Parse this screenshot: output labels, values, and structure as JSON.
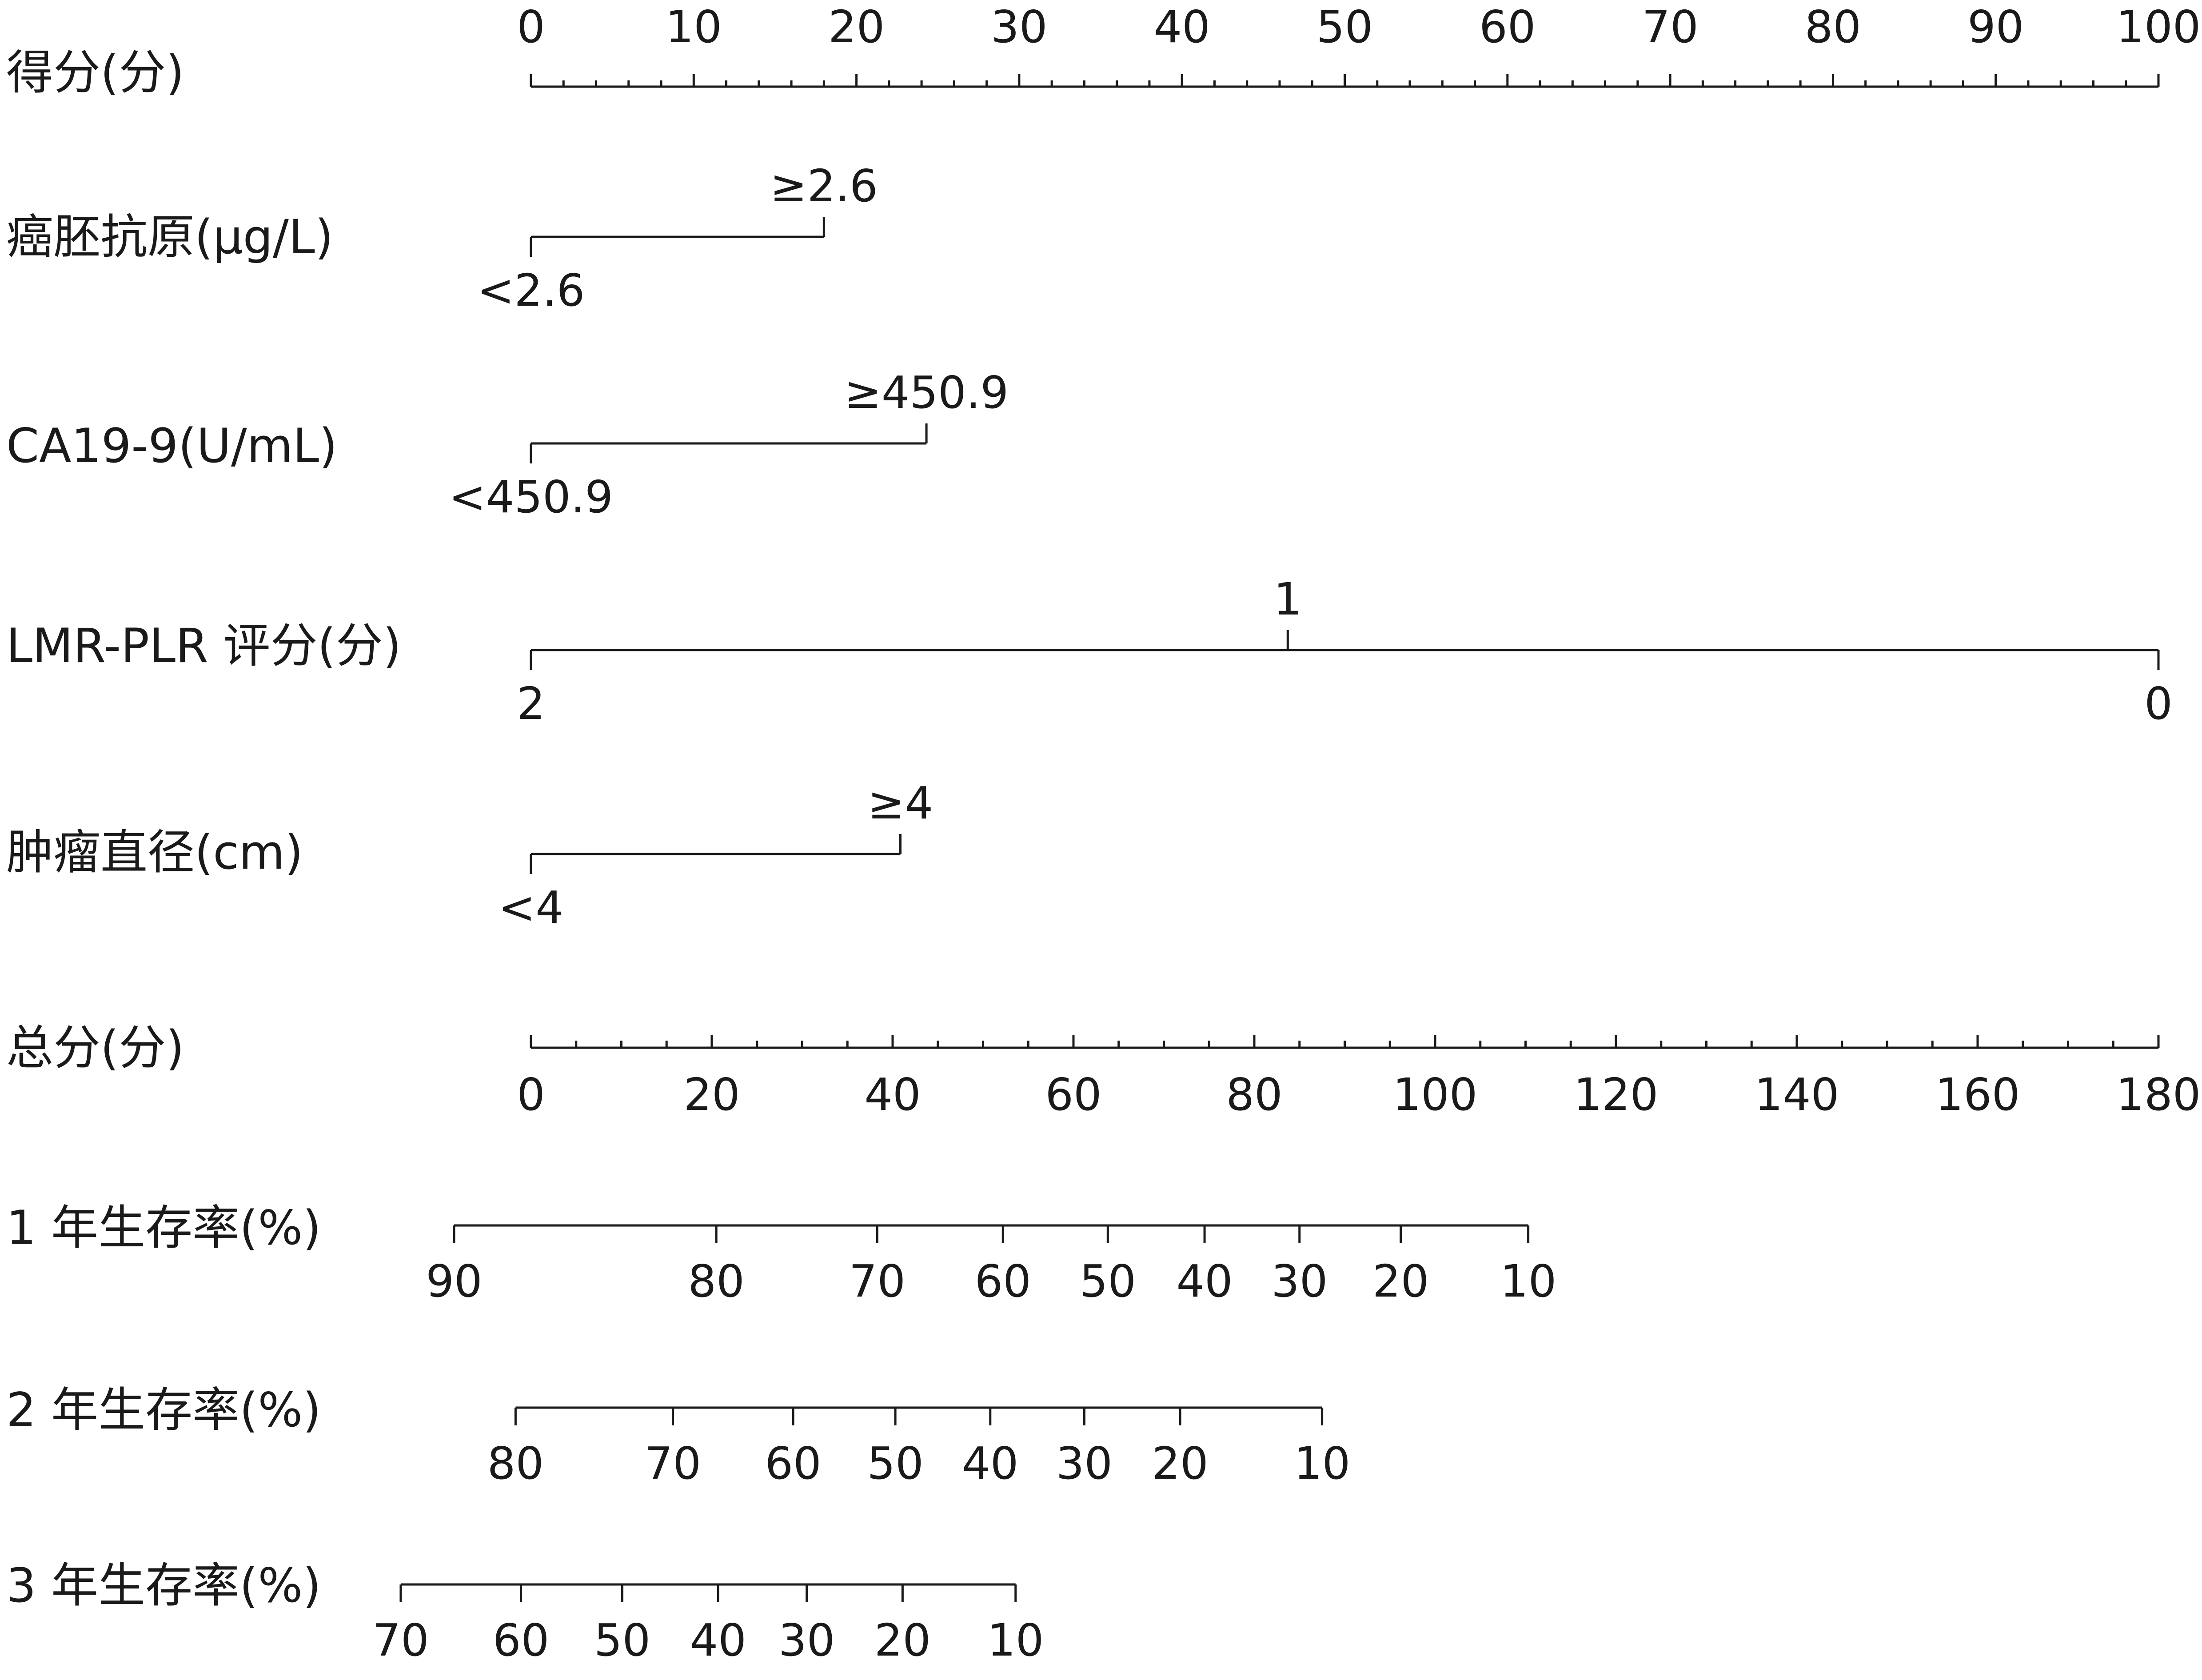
{
  "chart_data": {
    "type": "nomogram",
    "rows": [
      {
        "label": "得分(分)",
        "kind": "points",
        "min": 0,
        "max": 100,
        "labels": [
          0,
          10,
          20,
          30,
          40,
          50,
          60,
          70,
          80,
          90,
          100
        ],
        "minor_step": 2
      },
      {
        "label": "癌胚抗原(μg/L)",
        "kind": "variable",
        "levels": [
          {
            "text": "<2.6",
            "points": 0
          },
          {
            "text": "≥2.6",
            "points": 18
          }
        ]
      },
      {
        "label": "CA19-9(U/mL)",
        "kind": "variable",
        "levels": [
          {
            "text": "<450.9",
            "points": 0
          },
          {
            "text": "≥450.9",
            "points": 24.3
          }
        ]
      },
      {
        "label": "LMR-PLR 评分(分)",
        "kind": "variable",
        "levels": [
          {
            "text": "2",
            "points": 0
          },
          {
            "text": "1",
            "points": 46.5
          },
          {
            "text": "0",
            "points": 100
          }
        ]
      },
      {
        "label": "肿瘤直径(cm)",
        "kind": "variable",
        "levels": [
          {
            "text": "<4",
            "points": 0
          },
          {
            "text": "≥4",
            "points": 22.7
          }
        ]
      },
      {
        "label": "总分(分)",
        "kind": "total",
        "min": 0,
        "max": 180,
        "labels": [
          0,
          20,
          40,
          60,
          80,
          100,
          120,
          140,
          160,
          180
        ],
        "minor_step": 5
      },
      {
        "label": "1 年生存率(%)",
        "kind": "probability",
        "ticks": [
          {
            "text": "90",
            "total": -8.5
          },
          {
            "text": "80",
            "total": 20.5
          },
          {
            "text": "70",
            "total": 38.3
          },
          {
            "text": "60",
            "total": 52.2
          },
          {
            "text": "50",
            "total": 63.8
          },
          {
            "text": "40",
            "total": 74.5
          },
          {
            "text": "30",
            "total": 85
          },
          {
            "text": "20",
            "total": 96.2
          },
          {
            "text": "10",
            "total": 110.3
          }
        ]
      },
      {
        "label": "2 年生存率(%)",
        "kind": "probability",
        "ticks": [
          {
            "text": "80",
            "total": -1.7
          },
          {
            "text": "70",
            "total": 15.7
          },
          {
            "text": "60",
            "total": 29
          },
          {
            "text": "50",
            "total": 40.3
          },
          {
            "text": "40",
            "total": 50.8
          },
          {
            "text": "30",
            "total": 61.2
          },
          {
            "text": "20",
            "total": 71.8
          },
          {
            "text": "10",
            "total": 87.5
          }
        ]
      },
      {
        "label": "3 年生存率(%)",
        "kind": "probability",
        "ticks": [
          {
            "text": "70",
            "total": -14.4
          },
          {
            "text": "60",
            "total": -1.1
          },
          {
            "text": "50",
            "total": 10.1
          },
          {
            "text": "40",
            "total": 20.7
          },
          {
            "text": "30",
            "total": 30.5
          },
          {
            "text": "20",
            "total": 41.1
          },
          {
            "text": "10",
            "total": 53.6
          }
        ]
      }
    ]
  }
}
